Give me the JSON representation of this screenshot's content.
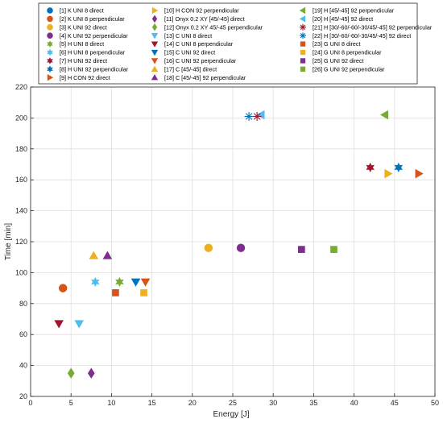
{
  "chart_data": {
    "type": "scatter",
    "title": "",
    "xlabel": "Energy [J]",
    "ylabel": "Time [min]",
    "xlim": [
      0,
      50
    ],
    "ylim": [
      20,
      220
    ],
    "xticks": [
      0,
      5,
      10,
      15,
      20,
      25,
      30,
      35,
      40,
      45,
      50
    ],
    "yticks": [
      20,
      40,
      60,
      80,
      100,
      120,
      140,
      160,
      180,
      200,
      220
    ],
    "grid": true,
    "legend_position": "top",
    "series": [
      {
        "name": "[1] K UNI 8 direct",
        "marker": "circle",
        "color": "#0072BD",
        "points": []
      },
      {
        "name": "[2] K UNI 8 perpendicular",
        "marker": "circle",
        "color": "#D95319",
        "points": [
          [
            4,
            90
          ]
        ]
      },
      {
        "name": "[3] K UNI 92 direct",
        "marker": "circle",
        "color": "#EDB120",
        "points": [
          [
            22,
            116
          ]
        ]
      },
      {
        "name": "[4] K UNI 92 perpendicular",
        "marker": "circle",
        "color": "#7E2F8E",
        "points": [
          [
            26,
            116
          ]
        ]
      },
      {
        "name": "[5] H UNI 8 direct",
        "marker": "hexagram",
        "color": "#77AC30",
        "points": [
          [
            11,
            94
          ]
        ]
      },
      {
        "name": "[6] H UNI 8 perpendicular",
        "marker": "hexagram",
        "color": "#4DBEEE",
        "points": [
          [
            8,
            94
          ]
        ]
      },
      {
        "name": "[7] H UNI 92 direct",
        "marker": "hexagram",
        "color": "#A2142F",
        "points": [
          [
            42,
            168
          ]
        ]
      },
      {
        "name": "[8] H UNI 92 perpendicular",
        "marker": "hexagram",
        "color": "#0072BD",
        "points": [
          [
            45.5,
            168
          ]
        ]
      },
      {
        "name": "[9] H CON 92 direct",
        "marker": "triangle-right",
        "color": "#D95319",
        "points": [
          [
            48,
            164
          ]
        ]
      },
      {
        "name": "[10] H CON 92 perpendicular",
        "marker": "triangle-right",
        "color": "#EDB120",
        "points": [
          [
            44.2,
            164
          ]
        ]
      },
      {
        "name": "[11] Onyx 0.2 XY [45/-45] direct",
        "marker": "diamond",
        "color": "#7E2F8E",
        "points": [
          [
            7.5,
            35
          ]
        ]
      },
      {
        "name": "[12] Onyx 0.2 XY 45/-45 perpendicular",
        "marker": "diamond",
        "color": "#77AC30",
        "points": [
          [
            5,
            35
          ]
        ]
      },
      {
        "name": "[13] C UNI 8 direct",
        "marker": "triangle-down",
        "color": "#4DBEEE",
        "points": [
          [
            6,
            67
          ]
        ]
      },
      {
        "name": "[14] C UNI 8 perpendicular",
        "marker": "triangle-down",
        "color": "#A2142F",
        "points": [
          [
            3.5,
            67
          ]
        ]
      },
      {
        "name": "[15] C UNI 92 direct",
        "marker": "triangle-down",
        "color": "#0072BD",
        "points": [
          [
            13,
            94
          ]
        ]
      },
      {
        "name": "[16] C UNI 92 perpendicular",
        "marker": "triangle-down",
        "color": "#D95319",
        "points": [
          [
            14.2,
            94
          ]
        ]
      },
      {
        "name": "[17] C [45/-45] direct",
        "marker": "triangle-up",
        "color": "#EDB120",
        "points": [
          [
            7.8,
            111
          ]
        ]
      },
      {
        "name": "[18] C [45/-45] 92 perpendicular",
        "marker": "triangle-up",
        "color": "#7E2F8E",
        "points": [
          [
            9.5,
            111
          ]
        ]
      },
      {
        "name": "[19] H [45/-45] 92 perpendicular",
        "marker": "triangle-left",
        "color": "#77AC30",
        "points": [
          [
            43.8,
            202
          ]
        ]
      },
      {
        "name": "[20] H [45/-45] 92 direct",
        "marker": "triangle-left",
        "color": "#4DBEEE",
        "points": [
          [
            28.5,
            202
          ]
        ]
      },
      {
        "name": "[21] H [30/-60/-60/-30/45/-45] 92 perpendicular",
        "marker": "asterisk",
        "color": "#A2142F",
        "points": [
          [
            28,
            201
          ]
        ]
      },
      {
        "name": "[22] H [30/-60/-60/-30/45/-45] 92 direct",
        "marker": "asterisk",
        "color": "#0072BD",
        "points": [
          [
            27,
            201
          ]
        ]
      },
      {
        "name": "[23] G UNI 8 direct",
        "marker": "square",
        "color": "#D95319",
        "points": [
          [
            10.5,
            87
          ]
        ]
      },
      {
        "name": "[24] G UNI 8 perpendicular",
        "marker": "square",
        "color": "#EDB120",
        "points": [
          [
            14,
            87
          ]
        ]
      },
      {
        "name": "[25] G UNI 92 direct",
        "marker": "square",
        "color": "#7E2F8E",
        "points": [
          [
            33.5,
            115
          ]
        ]
      },
      {
        "name": "[26] G UNI 92 perpendicular",
        "marker": "square",
        "color": "#77AC30",
        "points": [
          [
            37.5,
            115
          ]
        ]
      }
    ]
  }
}
